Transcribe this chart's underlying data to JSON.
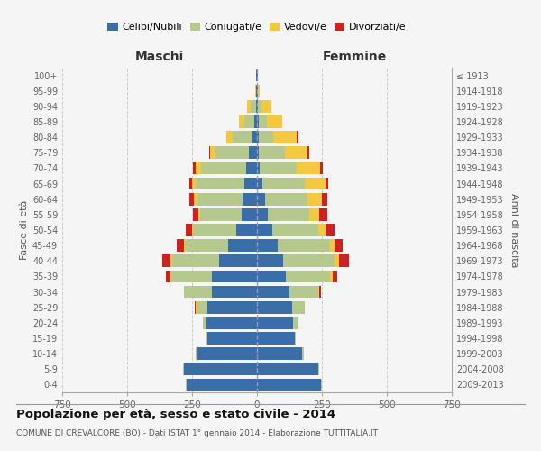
{
  "age_groups": [
    "0-4",
    "5-9",
    "10-14",
    "15-19",
    "20-24",
    "25-29",
    "30-34",
    "35-39",
    "40-44",
    "45-49",
    "50-54",
    "55-59",
    "60-64",
    "65-69",
    "70-74",
    "75-79",
    "80-84",
    "85-89",
    "90-94",
    "95-99",
    "100+"
  ],
  "birth_years": [
    "2009-2013",
    "2004-2008",
    "1999-2003",
    "1994-1998",
    "1989-1993",
    "1984-1988",
    "1979-1983",
    "1974-1978",
    "1969-1973",
    "1964-1968",
    "1959-1963",
    "1954-1958",
    "1949-1953",
    "1944-1948",
    "1939-1943",
    "1934-1938",
    "1929-1933",
    "1924-1928",
    "1919-1923",
    "1914-1918",
    "≤ 1913"
  ],
  "maschi_celibe": [
    270,
    280,
    230,
    190,
    195,
    190,
    175,
    175,
    145,
    110,
    80,
    60,
    55,
    50,
    40,
    30,
    18,
    10,
    5,
    3,
    2
  ],
  "maschi_coniugato": [
    5,
    5,
    5,
    5,
    15,
    40,
    105,
    155,
    180,
    165,
    165,
    160,
    175,
    185,
    175,
    130,
    75,
    40,
    20,
    2,
    0
  ],
  "maschi_vedovo": [
    0,
    0,
    0,
    0,
    0,
    5,
    0,
    5,
    8,
    5,
    5,
    5,
    12,
    15,
    22,
    20,
    25,
    20,
    12,
    2,
    0
  ],
  "maschi_divorziato": [
    0,
    0,
    0,
    0,
    0,
    5,
    0,
    15,
    30,
    30,
    25,
    20,
    20,
    10,
    8,
    5,
    0,
    0,
    0,
    0,
    0
  ],
  "femmine_celibe": [
    245,
    235,
    175,
    145,
    140,
    135,
    125,
    110,
    100,
    80,
    60,
    40,
    30,
    20,
    12,
    8,
    8,
    8,
    5,
    3,
    2
  ],
  "femmine_coniugata": [
    5,
    5,
    5,
    5,
    20,
    50,
    110,
    170,
    200,
    200,
    175,
    160,
    165,
    165,
    140,
    100,
    55,
    30,
    12,
    2,
    0
  ],
  "femmine_vedova": [
    0,
    0,
    0,
    0,
    0,
    0,
    5,
    10,
    15,
    20,
    30,
    40,
    55,
    80,
    90,
    85,
    90,
    60,
    40,
    5,
    0
  ],
  "femmine_divorziata": [
    0,
    0,
    0,
    0,
    0,
    0,
    5,
    20,
    40,
    30,
    35,
    30,
    20,
    10,
    10,
    10,
    5,
    0,
    0,
    0,
    0
  ],
  "colors": {
    "celibe": "#3a6ea8",
    "coniugato": "#b5c98e",
    "vedovo": "#f5c842",
    "divorziato": "#cc2222"
  },
  "title": "Popolazione per età, sesso e stato civile - 2014",
  "subtitle": "COMUNE DI CREVALCORE (BO) - Dati ISTAT 1° gennaio 2014 - Elaborazione TUTTITALIA.IT",
  "xlabel_left": "Maschi",
  "xlabel_right": "Femmine",
  "ylabel_left": "Fasce di età",
  "ylabel_right": "Anni di nascita",
  "xlim": 750,
  "bg_color": "#f5f5f5",
  "grid_color": "#cccccc"
}
